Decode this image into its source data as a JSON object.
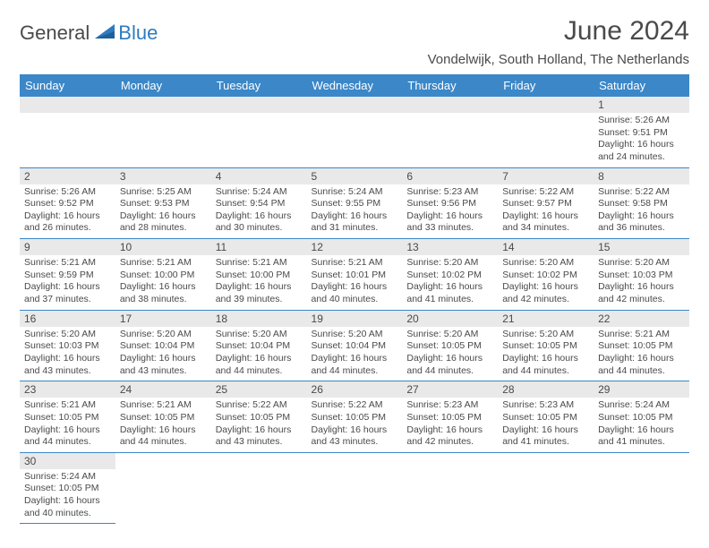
{
  "brand": {
    "part1": "General",
    "part2": "Blue"
  },
  "title": "June 2024",
  "location": "Vondelwijk, South Holland, The Netherlands",
  "colors": {
    "header_bg": "#3b87c8",
    "header_fg": "#ffffff",
    "daynum_bg": "#e9e9e9",
    "text": "#4a4a4a",
    "row_border": "#3b87c8",
    "brand_blue": "#2f7bbf"
  },
  "dayNames": [
    "Sunday",
    "Monday",
    "Tuesday",
    "Wednesday",
    "Thursday",
    "Friday",
    "Saturday"
  ],
  "startWeekday": 6,
  "daysInMonth": 30,
  "days": {
    "1": {
      "sunrise": "5:26 AM",
      "sunset": "9:51 PM",
      "daylight_h": 16,
      "daylight_m": 24
    },
    "2": {
      "sunrise": "5:26 AM",
      "sunset": "9:52 PM",
      "daylight_h": 16,
      "daylight_m": 26
    },
    "3": {
      "sunrise": "5:25 AM",
      "sunset": "9:53 PM",
      "daylight_h": 16,
      "daylight_m": 28
    },
    "4": {
      "sunrise": "5:24 AM",
      "sunset": "9:54 PM",
      "daylight_h": 16,
      "daylight_m": 30
    },
    "5": {
      "sunrise": "5:24 AM",
      "sunset": "9:55 PM",
      "daylight_h": 16,
      "daylight_m": 31
    },
    "6": {
      "sunrise": "5:23 AM",
      "sunset": "9:56 PM",
      "daylight_h": 16,
      "daylight_m": 33
    },
    "7": {
      "sunrise": "5:22 AM",
      "sunset": "9:57 PM",
      "daylight_h": 16,
      "daylight_m": 34
    },
    "8": {
      "sunrise": "5:22 AM",
      "sunset": "9:58 PM",
      "daylight_h": 16,
      "daylight_m": 36
    },
    "9": {
      "sunrise": "5:21 AM",
      "sunset": "9:59 PM",
      "daylight_h": 16,
      "daylight_m": 37
    },
    "10": {
      "sunrise": "5:21 AM",
      "sunset": "10:00 PM",
      "daylight_h": 16,
      "daylight_m": 38
    },
    "11": {
      "sunrise": "5:21 AM",
      "sunset": "10:00 PM",
      "daylight_h": 16,
      "daylight_m": 39
    },
    "12": {
      "sunrise": "5:21 AM",
      "sunset": "10:01 PM",
      "daylight_h": 16,
      "daylight_m": 40
    },
    "13": {
      "sunrise": "5:20 AM",
      "sunset": "10:02 PM",
      "daylight_h": 16,
      "daylight_m": 41
    },
    "14": {
      "sunrise": "5:20 AM",
      "sunset": "10:02 PM",
      "daylight_h": 16,
      "daylight_m": 42
    },
    "15": {
      "sunrise": "5:20 AM",
      "sunset": "10:03 PM",
      "daylight_h": 16,
      "daylight_m": 42
    },
    "16": {
      "sunrise": "5:20 AM",
      "sunset": "10:03 PM",
      "daylight_h": 16,
      "daylight_m": 43
    },
    "17": {
      "sunrise": "5:20 AM",
      "sunset": "10:04 PM",
      "daylight_h": 16,
      "daylight_m": 43
    },
    "18": {
      "sunrise": "5:20 AM",
      "sunset": "10:04 PM",
      "daylight_h": 16,
      "daylight_m": 44
    },
    "19": {
      "sunrise": "5:20 AM",
      "sunset": "10:04 PM",
      "daylight_h": 16,
      "daylight_m": 44
    },
    "20": {
      "sunrise": "5:20 AM",
      "sunset": "10:05 PM",
      "daylight_h": 16,
      "daylight_m": 44
    },
    "21": {
      "sunrise": "5:20 AM",
      "sunset": "10:05 PM",
      "daylight_h": 16,
      "daylight_m": 44
    },
    "22": {
      "sunrise": "5:21 AM",
      "sunset": "10:05 PM",
      "daylight_h": 16,
      "daylight_m": 44
    },
    "23": {
      "sunrise": "5:21 AM",
      "sunset": "10:05 PM",
      "daylight_h": 16,
      "daylight_m": 44
    },
    "24": {
      "sunrise": "5:21 AM",
      "sunset": "10:05 PM",
      "daylight_h": 16,
      "daylight_m": 44
    },
    "25": {
      "sunrise": "5:22 AM",
      "sunset": "10:05 PM",
      "daylight_h": 16,
      "daylight_m": 43
    },
    "26": {
      "sunrise": "5:22 AM",
      "sunset": "10:05 PM",
      "daylight_h": 16,
      "daylight_m": 43
    },
    "27": {
      "sunrise": "5:23 AM",
      "sunset": "10:05 PM",
      "daylight_h": 16,
      "daylight_m": 42
    },
    "28": {
      "sunrise": "5:23 AM",
      "sunset": "10:05 PM",
      "daylight_h": 16,
      "daylight_m": 41
    },
    "29": {
      "sunrise": "5:24 AM",
      "sunset": "10:05 PM",
      "daylight_h": 16,
      "daylight_m": 41
    },
    "30": {
      "sunrise": "5:24 AM",
      "sunset": "10:05 PM",
      "daylight_h": 16,
      "daylight_m": 40
    }
  },
  "labels": {
    "sunrise_prefix": "Sunrise: ",
    "sunset_prefix": "Sunset: ",
    "daylight_prefix": "Daylight: ",
    "hours_word": " hours",
    "and_word": "and ",
    "minutes_word": " minutes."
  }
}
